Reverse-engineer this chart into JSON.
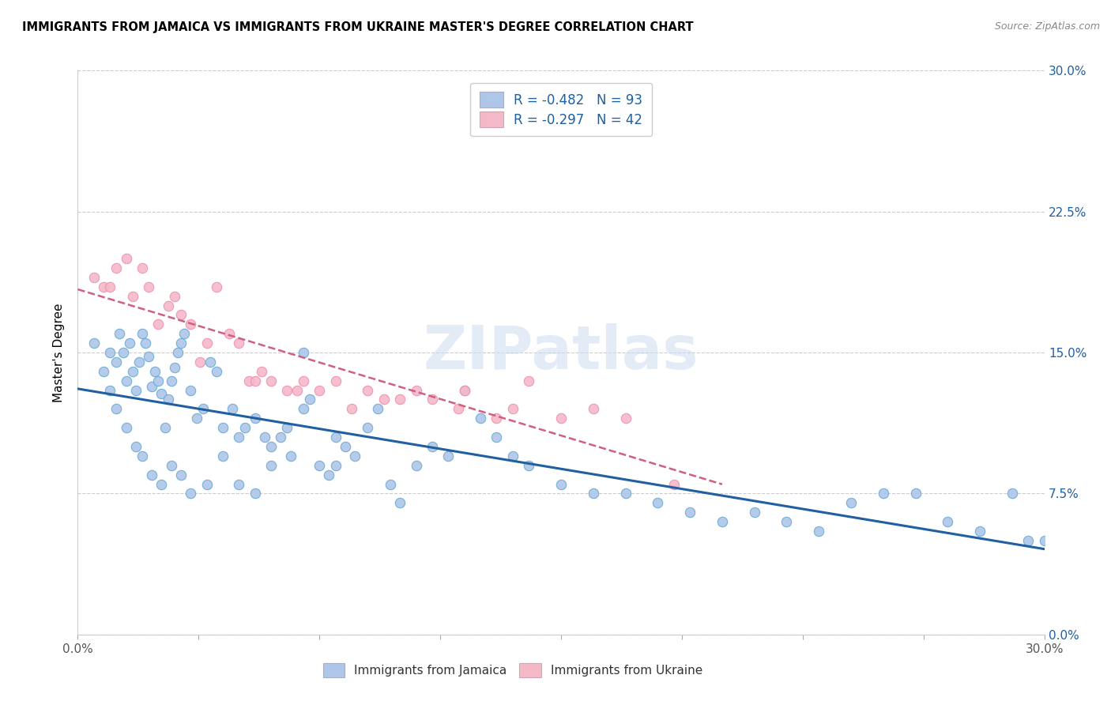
{
  "title": "IMMIGRANTS FROM JAMAICA VS IMMIGRANTS FROM UKRAINE MASTER'S DEGREE CORRELATION CHART",
  "source_text": "Source: ZipAtlas.com",
  "ylabel": "Master's Degree",
  "color_jamaica": "#aec6e8",
  "color_ukraine": "#f4b8c8",
  "edge_jamaica": "#6aaad4",
  "edge_ukraine": "#f090b0",
  "trendline_jamaica_color": "#2060a0",
  "trendline_ukraine_color": "#d06080",
  "watermark": "ZIPatlas",
  "legend_R_jamaica": "-0.482",
  "legend_N_jamaica": "93",
  "legend_R_ukraine": "-0.297",
  "legend_N_ukraine": "42",
  "legend_text_color": "#2060a0",
  "legend_label_color": "#333333",
  "xlim": [
    0.0,
    30.0
  ],
  "ylim": [
    0.0,
    30.0
  ],
  "ytick_vals": [
    0.0,
    7.5,
    15.0,
    22.5,
    30.0
  ],
  "ytick_labels": [
    "0.0%",
    "7.5%",
    "15.0%",
    "22.5%",
    "30.0%"
  ],
  "jamaica_x": [
    0.5,
    0.8,
    1.0,
    1.2,
    1.3,
    1.4,
    1.5,
    1.6,
    1.7,
    1.8,
    1.9,
    2.0,
    2.1,
    2.2,
    2.3,
    2.4,
    2.5,
    2.6,
    2.7,
    2.8,
    2.9,
    3.0,
    3.1,
    3.2,
    3.3,
    3.5,
    3.7,
    3.9,
    4.1,
    4.3,
    4.5,
    4.8,
    5.0,
    5.2,
    5.5,
    5.8,
    6.0,
    6.3,
    6.6,
    7.0,
    7.2,
    7.5,
    7.8,
    8.0,
    8.3,
    8.6,
    9.0,
    9.3,
    9.7,
    10.0,
    10.5,
    11.0,
    11.5,
    12.0,
    12.5,
    13.0,
    13.5,
    14.0,
    15.0,
    16.0,
    17.0,
    18.0,
    19.0,
    20.0,
    21.0,
    22.0,
    23.0,
    24.0,
    25.0,
    26.0,
    27.0,
    28.0,
    29.0,
    29.5,
    30.0,
    1.0,
    1.2,
    1.5,
    1.8,
    2.0,
    2.3,
    2.6,
    2.9,
    3.2,
    3.5,
    4.0,
    4.5,
    5.0,
    5.5,
    6.0,
    6.5,
    7.0,
    8.0
  ],
  "jamaica_y": [
    15.5,
    14.0,
    15.0,
    14.5,
    16.0,
    15.0,
    13.5,
    15.5,
    14.0,
    13.0,
    14.5,
    16.0,
    15.5,
    14.8,
    13.2,
    14.0,
    13.5,
    12.8,
    11.0,
    12.5,
    13.5,
    14.2,
    15.0,
    15.5,
    16.0,
    13.0,
    11.5,
    12.0,
    14.5,
    14.0,
    11.0,
    12.0,
    10.5,
    11.0,
    11.5,
    10.5,
    9.0,
    10.5,
    9.5,
    15.0,
    12.5,
    9.0,
    8.5,
    10.5,
    10.0,
    9.5,
    11.0,
    12.0,
    8.0,
    7.0,
    9.0,
    10.0,
    9.5,
    13.0,
    11.5,
    10.5,
    9.5,
    9.0,
    8.0,
    7.5,
    7.5,
    7.0,
    6.5,
    6.0,
    6.5,
    6.0,
    5.5,
    7.0,
    7.5,
    7.5,
    6.0,
    5.5,
    7.5,
    5.0,
    5.0,
    13.0,
    12.0,
    11.0,
    10.0,
    9.5,
    8.5,
    8.0,
    9.0,
    8.5,
    7.5,
    8.0,
    9.5,
    8.0,
    7.5,
    10.0,
    11.0,
    12.0,
    9.0
  ],
  "ukraine_x": [
    0.5,
    0.8,
    1.0,
    1.2,
    1.5,
    1.7,
    2.0,
    2.2,
    2.5,
    2.8,
    3.0,
    3.2,
    3.5,
    3.8,
    4.0,
    4.3,
    4.7,
    5.0,
    5.3,
    5.7,
    6.0,
    6.5,
    7.0,
    7.5,
    8.5,
    9.0,
    10.0,
    11.0,
    12.0,
    13.0,
    14.0,
    15.0,
    16.0,
    17.0,
    18.5,
    5.5,
    6.8,
    8.0,
    9.5,
    10.5,
    11.8,
    13.5
  ],
  "ukraine_y": [
    19.0,
    18.5,
    18.5,
    19.5,
    20.0,
    18.0,
    19.5,
    18.5,
    16.5,
    17.5,
    18.0,
    17.0,
    16.5,
    14.5,
    15.5,
    18.5,
    16.0,
    15.5,
    13.5,
    14.0,
    13.5,
    13.0,
    13.5,
    13.0,
    12.0,
    13.0,
    12.5,
    12.5,
    13.0,
    11.5,
    13.5,
    11.5,
    12.0,
    11.5,
    8.0,
    13.5,
    13.0,
    13.5,
    12.5,
    13.0,
    12.0,
    12.0
  ]
}
